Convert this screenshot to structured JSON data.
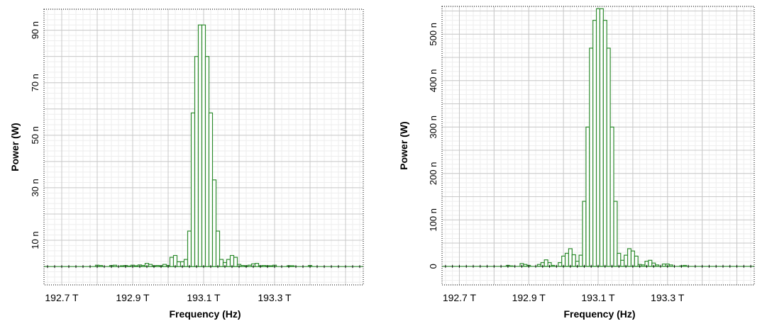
{
  "chart_data": [
    {
      "type": "bar",
      "xlabel": "Frequency (Hz)",
      "ylabel": "Power (W)",
      "xlim": [
        192.65,
        193.55
      ],
      "ylim": [
        -7,
        98
      ],
      "x_ticks": [
        192.7,
        192.9,
        193.1,
        193.3
      ],
      "x_tick_labels": [
        "192.7 T",
        "192.9 T",
        "193.1 T",
        "193.3 T"
      ],
      "y_ticks": [
        10,
        30,
        50,
        70,
        90
      ],
      "y_tick_labels": [
        "10 n",
        "30 n",
        "50 n",
        "70 n",
        "90 n"
      ],
      "grid": true,
      "baseline": 0,
      "color": "#2e8b2e",
      "bin_width": 0.01,
      "bins": {
        "x": [
          192.8,
          192.81,
          192.84,
          192.85,
          192.87,
          192.88,
          192.89,
          192.9,
          192.91,
          192.92,
          192.93,
          192.94,
          192.95,
          192.96,
          192.97,
          192.98,
          192.99,
          193.0,
          193.01,
          193.02,
          193.03,
          193.04,
          193.05,
          193.06,
          193.07,
          193.08,
          193.09,
          193.1,
          193.11,
          193.12,
          193.13,
          193.14,
          193.15,
          193.16,
          193.17,
          193.18,
          193.19,
          193.2,
          193.21,
          193.22,
          193.23,
          193.24,
          193.25,
          193.26,
          193.27,
          193.28,
          193.29,
          193.3,
          193.34,
          193.35,
          193.4
        ],
        "values": [
          0.5,
          0.4,
          0.4,
          0.5,
          0.3,
          0.4,
          0.2,
          0.5,
          0.3,
          0.6,
          0.4,
          1.2,
          0.8,
          0.3,
          0.4,
          0.3,
          0.8,
          0.4,
          3.5,
          4.2,
          1.8,
          1.8,
          2.7,
          13.5,
          58.5,
          80.0,
          92.0,
          92.0,
          80.0,
          58.5,
          33.0,
          13.5,
          2.7,
          1.5,
          2.7,
          4.2,
          3.5,
          0.8,
          0.4,
          0.3,
          0.5,
          1.0,
          1.2,
          0.3,
          0.4,
          0.3,
          0.3,
          0.5,
          0.3,
          0.3,
          0.4
        ]
      }
    },
    {
      "type": "bar",
      "xlabel": "Frequency (Hz)",
      "ylabel": "Power (W)",
      "xlim": [
        192.65,
        193.55
      ],
      "ylim": [
        -40,
        560
      ],
      "x_ticks": [
        192.7,
        192.9,
        193.1,
        193.3
      ],
      "x_tick_labels": [
        "192.7 T",
        "192.9 T",
        "193.1 T",
        "193.3 T"
      ],
      "y_ticks": [
        0,
        100,
        200,
        300,
        400,
        500
      ],
      "y_tick_labels": [
        "0",
        "100 n",
        "200 n",
        "300 n",
        "400 n",
        "500 n"
      ],
      "grid": true,
      "baseline": 0,
      "color": "#2e8b2e",
      "bin_width": 0.01,
      "bins": {
        "x": [
          192.84,
          192.85,
          192.88,
          192.89,
          192.9,
          192.93,
          192.94,
          192.95,
          192.96,
          192.97,
          192.99,
          193.0,
          193.01,
          193.02,
          193.03,
          193.04,
          193.05,
          193.06,
          193.07,
          193.08,
          193.09,
          193.1,
          193.11,
          193.12,
          193.13,
          193.14,
          193.15,
          193.16,
          193.17,
          193.18,
          193.19,
          193.2,
          193.21,
          193.22,
          193.23,
          193.24,
          193.25,
          193.26,
          193.27,
          193.29,
          193.3,
          193.31,
          193.34,
          193.35
        ],
        "values": [
          2,
          1,
          6,
          4,
          2,
          4,
          8,
          14,
          8,
          2,
          8,
          22,
          28,
          38,
          25,
          11,
          24,
          140,
          300,
          470,
          530,
          555,
          555,
          530,
          470,
          300,
          140,
          28,
          13,
          24,
          38,
          33,
          22,
          4,
          3,
          11,
          13,
          7,
          3,
          5,
          5,
          3,
          1,
          2
        ]
      }
    }
  ]
}
